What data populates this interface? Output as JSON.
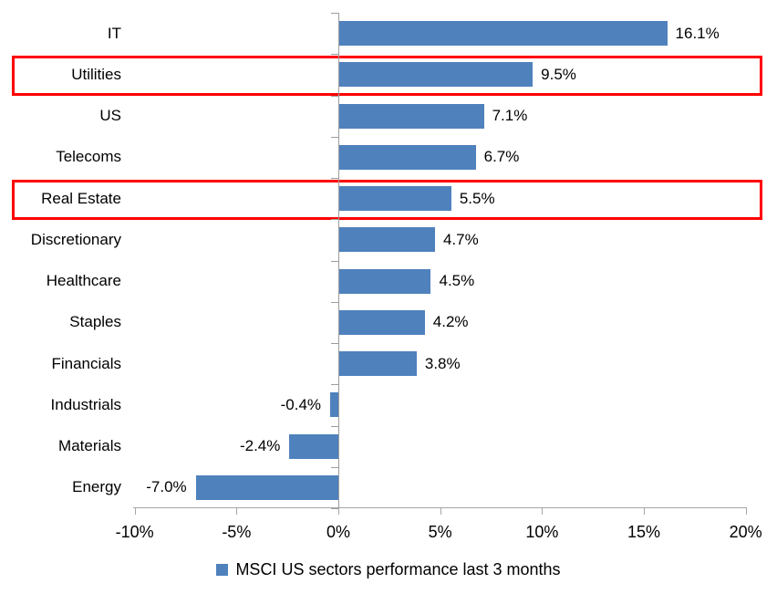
{
  "chart_data": {
    "type": "bar",
    "orientation": "horizontal",
    "title": "",
    "categories": [
      "IT",
      "Utilities",
      "US",
      "Telecoms",
      "Real Estate",
      "Discretionary",
      "Healthcare",
      "Staples",
      "Financials",
      "Industrials",
      "Materials",
      "Energy"
    ],
    "values": [
      16.1,
      9.5,
      7.1,
      6.7,
      5.5,
      4.7,
      4.5,
      4.2,
      3.8,
      -0.4,
      -2.4,
      -7.0
    ],
    "value_labels": [
      "16.1%",
      "9.5%",
      "7.1%",
      "6.7%",
      "5.5%",
      "4.7%",
      "4.5%",
      "4.2%",
      "3.8%",
      "-0.4%",
      "-2.4%",
      "-7.0%"
    ],
    "x_axis": {
      "min": -10,
      "max": 20,
      "tick_values": [
        -10,
        -5,
        0,
        5,
        10,
        15,
        20
      ],
      "tick_labels": [
        "-10%",
        "-5%",
        "0%",
        "5%",
        "10%",
        "15%",
        "20%"
      ]
    },
    "bar_color": "#4f81bd",
    "axis_color": "#a6a6a6",
    "category_axis_color": "#9d9d9d",
    "grid": false,
    "highlighted_categories": [
      "Utilities",
      "Real Estate"
    ],
    "highlight_color": "#fe0000",
    "legend": {
      "position": "bottom",
      "marker_color": "#4f81bd",
      "label": "MSCI US sectors performance last 3 months"
    }
  }
}
